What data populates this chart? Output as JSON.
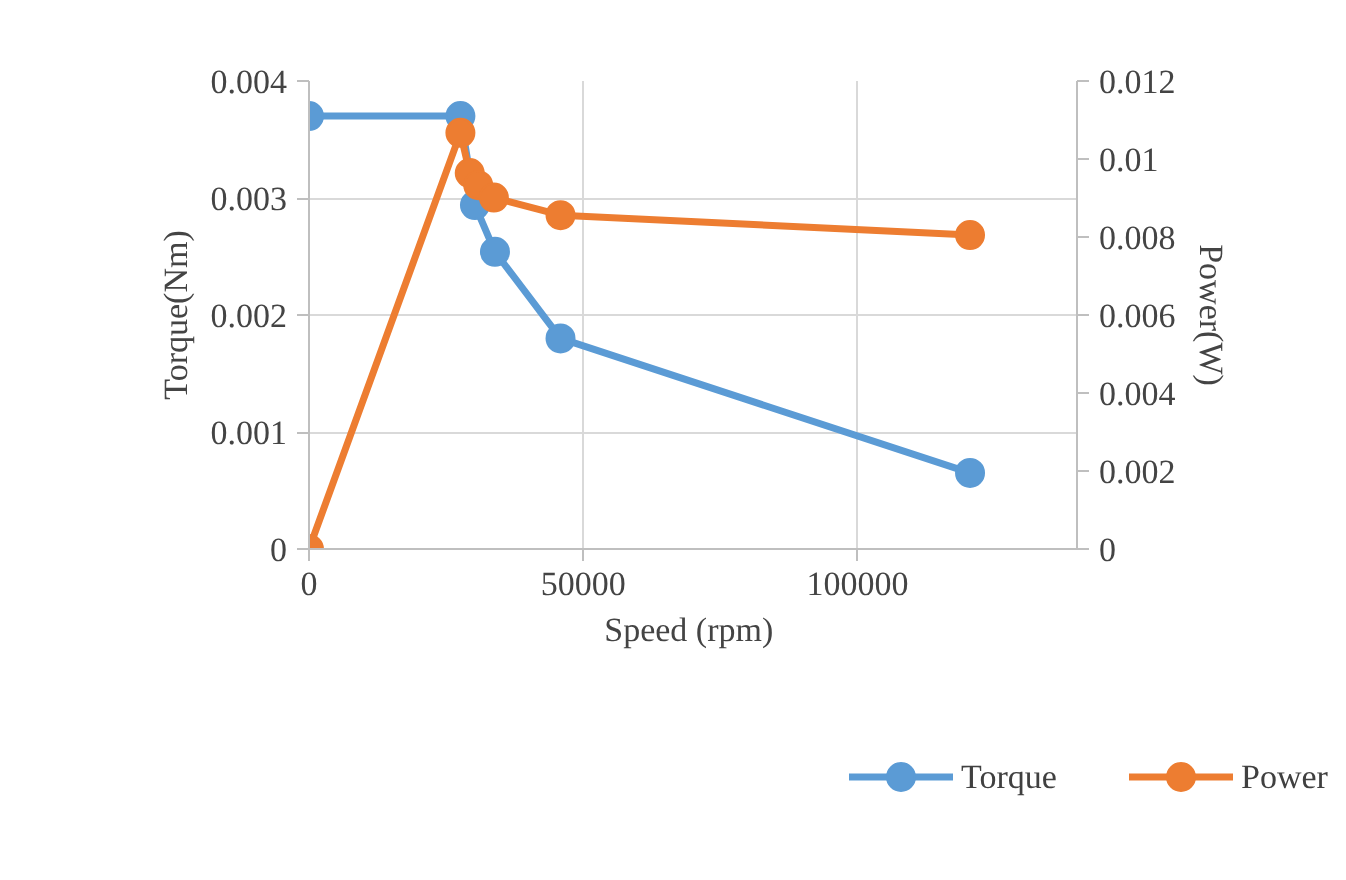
{
  "chart_data": {
    "type": "line",
    "xlabel": "Speed  (rpm)",
    "ylabel": "Torque(Nm)",
    "y2label": "Power(W)",
    "xlim": [
      0,
      140000
    ],
    "xticks": [
      0,
      50000,
      100000
    ],
    "ylim": [
      0,
      0.004
    ],
    "yticks": [
      0,
      0.001,
      0.002,
      0.003,
      0.004
    ],
    "y2lim": [
      0,
      0.012
    ],
    "y2ticks": [
      0,
      0.002,
      0.004,
      0.006,
      0.008,
      0.01,
      0.012
    ],
    "grid": true,
    "legend": "bottom",
    "marker": "circle",
    "line_style": "solid",
    "series": [
      {
        "name": "Torque",
        "color": "#5b9bd5",
        "x": [
          0,
          27600,
          30250,
          33900,
          45850,
          120500
        ],
        "values": [
          0.0037,
          0.0037,
          0.00294,
          0.00254,
          0.0018,
          0.00065
        ]
      },
      {
        "name": "Power",
        "color": "#ed7d31",
        "axis": "y2",
        "x": [
          0,
          27600,
          29300,
          30850,
          33700,
          45850,
          120500
        ],
        "values": [
          0,
          0.01067,
          0.00964,
          0.00933,
          0.00901,
          0.00856,
          0.00805
        ]
      }
    ]
  }
}
